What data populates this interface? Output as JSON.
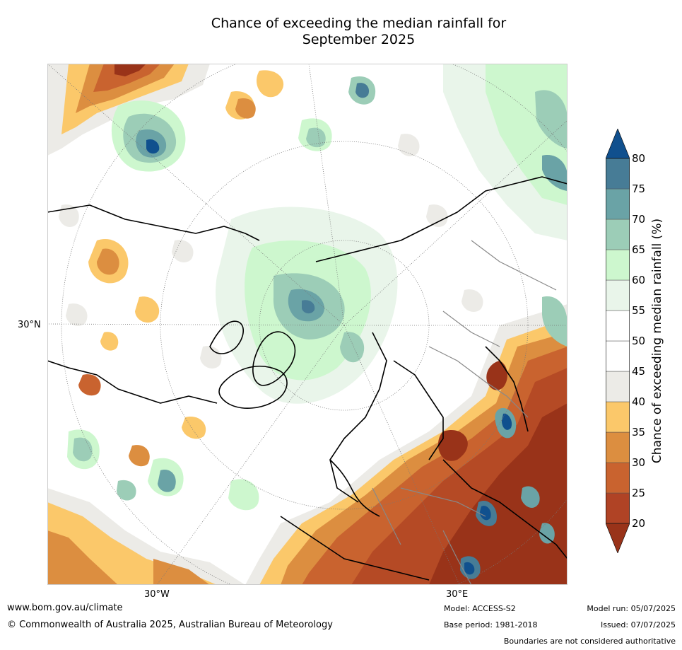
{
  "title": {
    "line1": "Chance of exceeding the median rainfall for",
    "line2": "September 2025"
  },
  "map": {
    "lon_labels": [
      "30°W",
      "30°E"
    ],
    "lat_label": "30°N",
    "colors": {
      "p20": "#993319",
      "p25": "#b54a25",
      "p30": "#c9632f",
      "p35": "#dc8e40",
      "p40": "#fbc86a",
      "p45": "#ecebe7",
      "p55": "#e9f5ea",
      "p60": "#cdf7ce",
      "p65": "#9ccdb7",
      "p70": "#6aa3a6",
      "p75": "#477c96",
      "p80": "#10508e"
    }
  },
  "colorbar": {
    "label": "Chance of exceeding median rainfall (%)",
    "ticks": [
      "20",
      "25",
      "30",
      "35",
      "40",
      "45",
      "50",
      "55",
      "60",
      "65",
      "70",
      "75",
      "80"
    ],
    "colors": [
      "#993319",
      "#b04325",
      "#c9632f",
      "#dc8e40",
      "#fbc86a",
      "#ecebe7",
      "#ffffff",
      "#ffffff",
      "#e9f5ea",
      "#cdf7ce",
      "#9ccdb7",
      "#6aa3a6",
      "#477c96",
      "#10508e"
    ]
  },
  "footer": {
    "url": "www.bom.gov.au/climate",
    "copyright": "© Commonwealth of Australia 2025, Australian Bureau of Meteorology",
    "model": "Model: ACCESS-S2",
    "base_period": "Base period: 1981-2018",
    "model_run": "Model run: 05/07/2025",
    "issued": "Issued: 07/07/2025",
    "disclaimer": "Boundaries are not considered authoritative"
  }
}
